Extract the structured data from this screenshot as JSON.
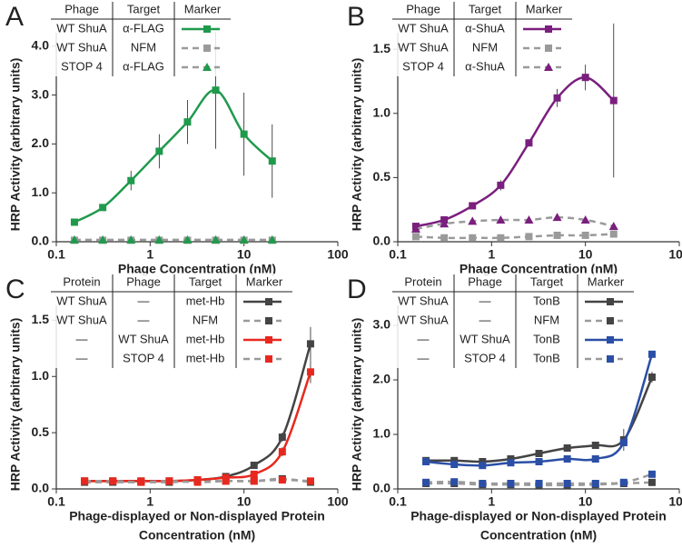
{
  "chart_data": [
    {
      "type": "line",
      "label": "A",
      "xscale": "log",
      "xlim": [
        0.1,
        100
      ],
      "xticks": [
        0.1,
        1,
        10,
        100
      ],
      "ylim": [
        0,
        4.2
      ],
      "yticks": [
        {
          "value": 0,
          "label": "0.0"
        },
        {
          "value": 1,
          "label": "1.0"
        },
        {
          "value": 2,
          "label": "2.0"
        },
        {
          "value": 3,
          "label": "3.0"
        },
        {
          "value": 4,
          "label": "4.0"
        }
      ],
      "xlabel": [
        "Phage Concentration (nM)"
      ],
      "ylabel": "HRP Activity (arbitrary units)",
      "columns": [
        "Phage",
        "Target",
        "Marker"
      ],
      "x": [
        0.156,
        0.3125,
        0.625,
        1.25,
        2.5,
        5,
        10,
        20
      ],
      "series": [
        {
          "cells": [
            "WT ShuA",
            "α-FLAG"
          ],
          "color": "#1f9a4c",
          "dash": false,
          "marker": "square",
          "values": [
            0.4,
            0.7,
            1.25,
            1.85,
            2.45,
            3.1,
            2.2,
            1.65
          ],
          "errors": [
            0.05,
            0.05,
            0.2,
            0.35,
            0.45,
            1.2,
            0.85,
            0.75
          ]
        },
        {
          "cells": [
            "WT ShuA",
            "NFM"
          ],
          "color": "#9a9a9a",
          "dash": true,
          "marker": "square",
          "values": [
            0.03,
            0.03,
            0.03,
            0.03,
            0.03,
            0.03,
            0.03,
            0.03
          ]
        },
        {
          "cells": [
            "STOP 4",
            "α-FLAG"
          ],
          "color": "#1f9a4c",
          "dash": true,
          "marker": "triangle",
          "values": [
            0.04,
            0.04,
            0.04,
            0.04,
            0.04,
            0.04,
            0.04,
            0.04
          ]
        }
      ]
    },
    {
      "type": "line",
      "label": "B",
      "xscale": "log",
      "xlim": [
        0.1,
        100
      ],
      "xticks": [
        0.1,
        1,
        10,
        100
      ],
      "ylim": [
        0,
        1.6
      ],
      "yticks": [
        {
          "value": 0,
          "label": "0.0"
        },
        0.5,
        {
          "value": 1,
          "label": "1.0"
        },
        1.5
      ],
      "xlabel": [
        "Phage Concentration (nM)"
      ],
      "ylabel": "HRP Activity (arbitrary units)",
      "columns": [
        "Phage",
        "Target",
        "Marker"
      ],
      "x": [
        0.156,
        0.3125,
        0.625,
        1.25,
        2.5,
        5,
        10,
        20
      ],
      "series": [
        {
          "cells": [
            "WT ShuA",
            "α-ShuA"
          ],
          "color": "#7a1f7e",
          "dash": false,
          "marker": "square",
          "values": [
            0.12,
            0.17,
            0.28,
            0.44,
            0.77,
            1.12,
            1.28,
            1.1
          ],
          "errors": [
            0.02,
            0.02,
            0.02,
            0.04,
            0.02,
            0.07,
            0.1,
            0.6
          ]
        },
        {
          "cells": [
            "WT ShuA",
            "NFM"
          ],
          "color": "#9a9a9a",
          "dash": true,
          "marker": "square",
          "values": [
            0.04,
            0.03,
            0.03,
            0.03,
            0.04,
            0.05,
            0.05,
            0.06
          ]
        },
        {
          "cells": [
            "STOP 4",
            "α-ShuA"
          ],
          "color": "#7a1f7e",
          "dash": true,
          "marker": "triangle",
          "values": [
            0.1,
            0.14,
            0.16,
            0.17,
            0.17,
            0.19,
            0.17,
            0.12
          ]
        }
      ]
    },
    {
      "type": "line",
      "label": "C",
      "xscale": "log",
      "xlim": [
        0.1,
        100
      ],
      "xticks": [
        0.1,
        1,
        10,
        100
      ],
      "ylim": [
        0,
        1.6
      ],
      "yticks": [
        {
          "value": 0,
          "label": "0.0"
        },
        0.5,
        {
          "value": 1,
          "label": "1.0"
        },
        1.5
      ],
      "xlabel": [
        "Phage-displayed or Non-displayed Protein",
        "Concentration (nM)"
      ],
      "ylabel": "HRP Activity (arbitrary units)",
      "columns": [
        "Protein",
        "Phage",
        "Target",
        "Marker"
      ],
      "x": [
        0.2,
        0.4,
        0.8,
        1.6,
        3.2,
        6.4,
        12.8,
        25.6,
        51.2
      ],
      "series": [
        {
          "cells": [
            "WT ShuA",
            "—",
            "met-Hb"
          ],
          "color": "#444444",
          "dash": false,
          "marker": "square",
          "values": [
            0.07,
            0.07,
            0.07,
            0.07,
            0.08,
            0.11,
            0.21,
            0.46,
            1.29
          ],
          "errors": [
            0.01,
            0.01,
            0.01,
            0.01,
            0.01,
            0.02,
            0.02,
            0.04,
            0.15
          ]
        },
        {
          "cells": [
            "WT ShuA",
            "—",
            "NFM"
          ],
          "color": "#444444",
          "dash": true,
          "marker": "square",
          "values": [
            0.06,
            0.06,
            0.06,
            0.06,
            0.07,
            0.07,
            0.07,
            0.09,
            0.06
          ]
        },
        {
          "cells": [
            "—",
            "WT ShuA",
            "met-Hb"
          ],
          "color": "#e8281e",
          "dash": false,
          "marker": "square",
          "values": [
            0.07,
            0.07,
            0.07,
            0.07,
            0.08,
            0.1,
            0.13,
            0.33,
            1.04
          ],
          "errors": [
            0.01,
            0.01,
            0.01,
            0.01,
            0.01,
            0.02,
            0.02,
            0.04,
            0.1
          ]
        },
        {
          "cells": [
            "—",
            "STOP 4",
            "met-Hb"
          ],
          "color": "#e8281e",
          "dash": true,
          "marker": "square",
          "values": [
            0.07,
            0.07,
            0.06,
            0.07,
            0.06,
            0.07,
            0.07,
            0.08,
            0.07
          ]
        }
      ]
    },
    {
      "type": "line",
      "label": "D",
      "xscale": "log",
      "xlim": [
        0.1,
        100
      ],
      "xticks": [
        0.1,
        1,
        10,
        100
      ],
      "ylim": [
        0,
        3.3
      ],
      "yticks": [
        {
          "value": 0,
          "label": "0.0"
        },
        {
          "value": 1,
          "label": "1.0"
        },
        {
          "value": 2,
          "label": "2.0"
        },
        {
          "value": 3,
          "label": "3.0"
        }
      ],
      "xlabel": [
        "Phage-displayed or Non-displayed Protein",
        "Concentration (nM)"
      ],
      "ylabel": "HRP Activity (arbitrary units)",
      "columns": [
        "Protein",
        "Phage",
        "Target",
        "Marker"
      ],
      "x": [
        0.2,
        0.4,
        0.8,
        1.6,
        3.2,
        6.4,
        12.8,
        25.6,
        51.2
      ],
      "series": [
        {
          "cells": [
            "WT ShuA",
            "—",
            "TonB"
          ],
          "color": "#444444",
          "dash": false,
          "marker": "square",
          "values": [
            0.52,
            0.52,
            0.5,
            0.55,
            0.65,
            0.75,
            0.8,
            0.9,
            2.05
          ],
          "errors": [
            0.03,
            0.03,
            0.03,
            0.03,
            0.03,
            0.03,
            0.03,
            0.2,
            0.1
          ]
        },
        {
          "cells": [
            "WT ShuA",
            "—",
            "NFM"
          ],
          "color": "#444444",
          "dash": true,
          "marker": "square",
          "values": [
            0.1,
            0.1,
            0.08,
            0.08,
            0.07,
            0.07,
            0.08,
            0.1,
            0.12
          ]
        },
        {
          "cells": [
            "—",
            "WT ShuA",
            "TonB"
          ],
          "color": "#2b4fa6",
          "dash": false,
          "marker": "square",
          "values": [
            0.5,
            0.45,
            0.43,
            0.48,
            0.5,
            0.55,
            0.55,
            0.85,
            2.47
          ],
          "errors": [
            0.03,
            0.03,
            0.03,
            0.03,
            0.03,
            0.03,
            0.03,
            0.05,
            0.05
          ]
        },
        {
          "cells": [
            "—",
            "STOP 4",
            "TonB"
          ],
          "color": "#2b4fa6",
          "dash": true,
          "marker": "square",
          "values": [
            0.12,
            0.13,
            0.1,
            0.1,
            0.1,
            0.1,
            0.1,
            0.12,
            0.27
          ]
        }
      ]
    }
  ]
}
